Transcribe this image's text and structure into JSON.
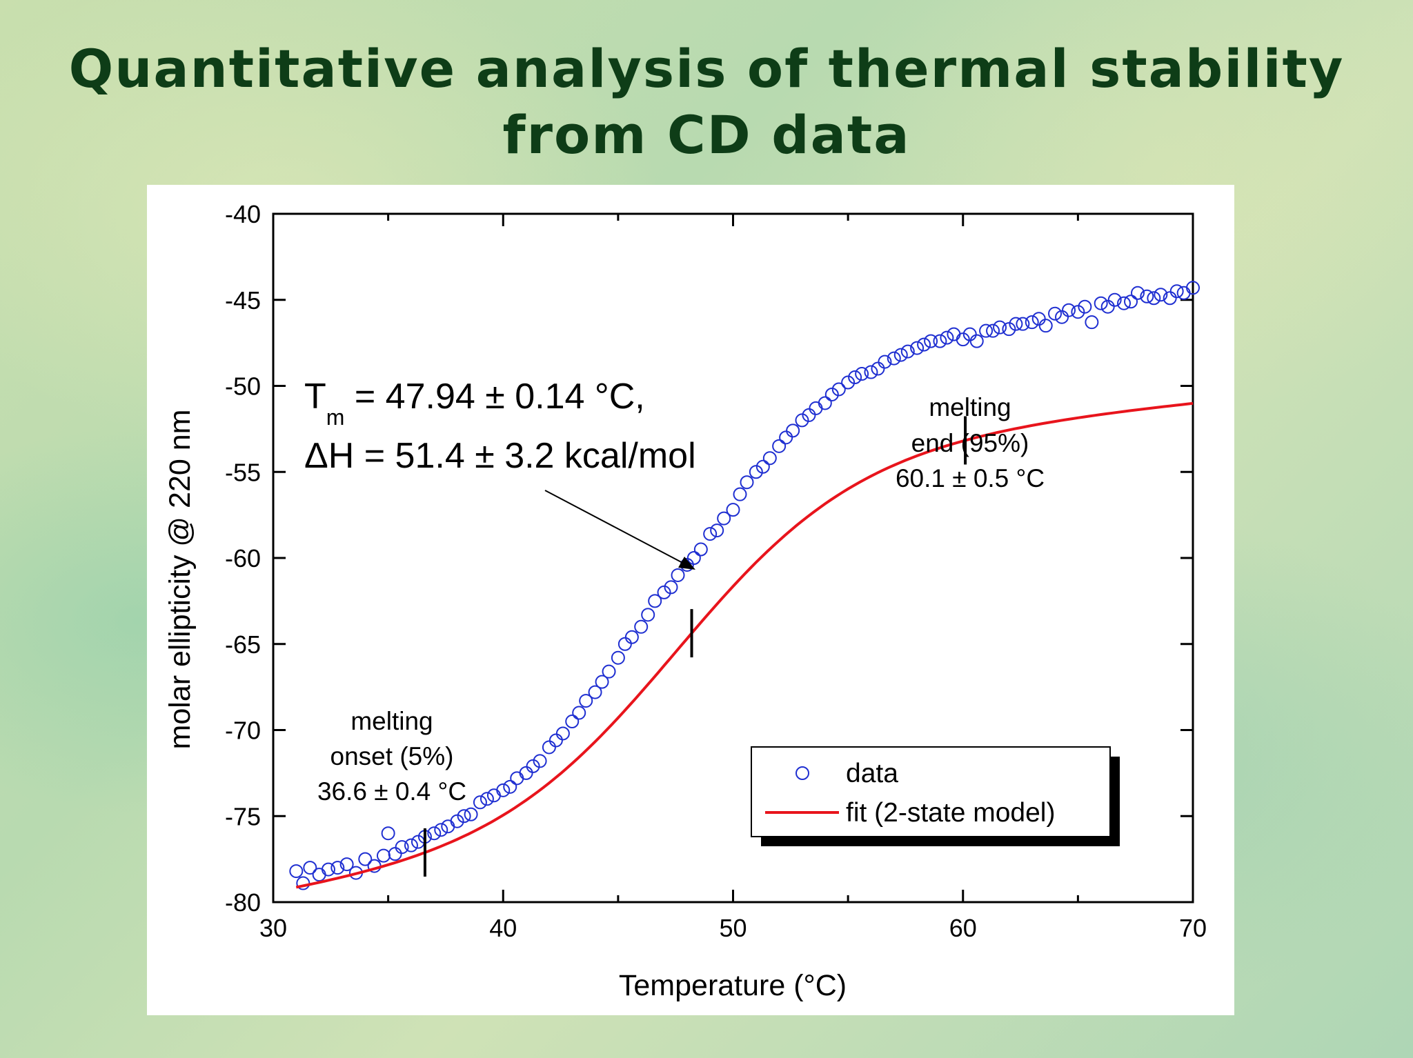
{
  "slide": {
    "title_line1": "Quantitative analysis of thermal stability",
    "title_line2": "from CD data"
  },
  "colors": {
    "title": "#0e3d17",
    "data_marker": "#1f2fd1",
    "fit_line": "#e8141c"
  },
  "chart_data": {
    "type": "scatter",
    "xlabel": "Temperature (°C)",
    "ylabel": "molar ellipticity @ 220 nm",
    "xlim": [
      30,
      70
    ],
    "ylim": [
      -80,
      -40
    ],
    "xticks": [
      30,
      40,
      50,
      60,
      70
    ],
    "yticks": [
      -40,
      -45,
      -50,
      -55,
      -60,
      -65,
      -70,
      -75,
      -80
    ],
    "grid": false,
    "legend_position": "bottom-right",
    "series": [
      {
        "name": "data",
        "marker": "open-circle",
        "x": [
          31.0,
          31.3,
          31.6,
          32.0,
          32.4,
          32.8,
          33.2,
          33.6,
          34.0,
          34.4,
          34.8,
          35.0,
          35.3,
          35.6,
          36.0,
          36.3,
          36.6,
          37.0,
          37.3,
          37.6,
          38.0,
          38.3,
          38.6,
          39.0,
          39.3,
          39.6,
          40.0,
          40.3,
          40.6,
          41.0,
          41.3,
          41.6,
          42.0,
          42.3,
          42.6,
          43.0,
          43.3,
          43.6,
          44.0,
          44.3,
          44.6,
          45.0,
          45.3,
          45.6,
          46.0,
          46.3,
          46.6,
          47.0,
          47.3,
          47.6,
          48.0,
          48.3,
          48.6,
          49.0,
          49.3,
          49.6,
          50.0,
          50.3,
          50.6,
          51.0,
          51.3,
          51.6,
          52.0,
          52.3,
          52.6,
          53.0,
          53.3,
          53.6,
          54.0,
          54.3,
          54.6,
          55.0,
          55.3,
          55.6,
          56.0,
          56.3,
          56.6,
          57.0,
          57.3,
          57.6,
          58.0,
          58.3,
          58.6,
          59.0,
          59.3,
          59.6,
          60.0,
          60.3,
          60.6,
          61.0,
          61.3,
          61.6,
          62.0,
          62.3,
          62.6,
          63.0,
          63.3,
          63.6,
          64.0,
          64.3,
          64.6,
          65.0,
          65.3,
          65.6,
          66.0,
          66.3,
          66.6,
          67.0,
          67.3,
          67.6,
          68.0,
          68.3,
          68.6,
          69.0,
          69.3,
          69.6,
          70.0
        ],
        "y": [
          -78.2,
          -78.9,
          -78.0,
          -78.4,
          -78.1,
          -78.0,
          -77.8,
          -78.3,
          -77.5,
          -77.9,
          -77.3,
          -76.0,
          -77.2,
          -76.8,
          -76.7,
          -76.5,
          -76.2,
          -76.0,
          -75.8,
          -75.6,
          -75.3,
          -75.0,
          -74.9,
          -74.2,
          -74.0,
          -73.8,
          -73.5,
          -73.3,
          -72.8,
          -72.5,
          -72.1,
          -71.8,
          -71.0,
          -70.6,
          -70.2,
          -69.5,
          -69.0,
          -68.3,
          -67.8,
          -67.2,
          -66.6,
          -65.8,
          -65.0,
          -64.6,
          -64.0,
          -63.3,
          -62.5,
          -62.0,
          -61.7,
          -61.0,
          -60.4,
          -60.0,
          -59.5,
          -58.6,
          -58.4,
          -57.7,
          -57.2,
          -56.3,
          -55.6,
          -55.0,
          -54.7,
          -54.2,
          -53.5,
          -53.0,
          -52.6,
          -52.0,
          -51.7,
          -51.3,
          -51.0,
          -50.5,
          -50.2,
          -49.8,
          -49.5,
          -49.3,
          -49.2,
          -49.0,
          -48.6,
          -48.4,
          -48.2,
          -48.0,
          -47.8,
          -47.6,
          -47.4,
          -47.4,
          -47.2,
          -47.0,
          -47.3,
          -47.0,
          -47.4,
          -46.8,
          -46.8,
          -46.6,
          -46.7,
          -46.4,
          -46.4,
          -46.3,
          -46.1,
          -46.5,
          -45.8,
          -46.0,
          -45.6,
          -45.7,
          -45.4,
          -46.3,
          -45.2,
          -45.4,
          -45.0,
          -45.2,
          -45.1,
          -44.6,
          -44.8,
          -44.9,
          -44.7,
          -44.9,
          -44.5,
          -44.6,
          -44.3
        ]
      },
      {
        "name": "fit (2-state model)",
        "marker": "line",
        "model": {
          "Tm": 47.94,
          "dH_kcal_mol": 51.4,
          "folded_baseline": [
            -79.6,
            0.2
          ],
          "unfolded_baseline": [
            -53.3,
            0.12
          ]
        }
      }
    ],
    "annotations": [
      {
        "kind": "tm",
        "x": 48.2,
        "line1_main": "T",
        "line1_sub": "m",
        "line1_rest": " = 47.94 ± 0.14 °C,",
        "line2": "ΔH = 51.4 ± 3.2 kcal/mol"
      },
      {
        "kind": "onset",
        "x": 36.6,
        "lines": [
          "melting",
          "onset (5%)",
          "36.6 ± 0.4 °C"
        ]
      },
      {
        "kind": "end",
        "x": 60.1,
        "lines": [
          "melting",
          "end (95%)",
          "60.1 ± 0.5 °C"
        ]
      }
    ]
  }
}
